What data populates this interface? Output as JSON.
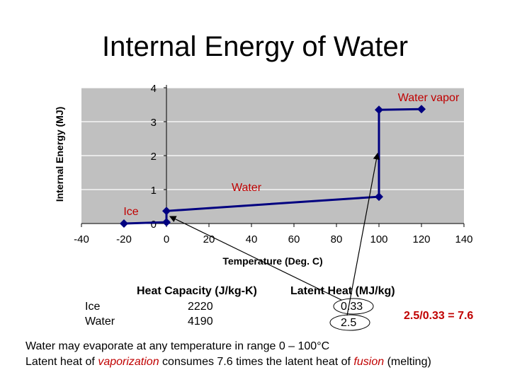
{
  "slide": {
    "title": "Internal Energy of Water"
  },
  "chart_data": {
    "type": "line",
    "title": "",
    "xlabel": "Temperature (Deg. C)",
    "ylabel": "Internal Energy (MJ)",
    "xlim": [
      -40,
      140
    ],
    "ylim": [
      0,
      4
    ],
    "xticks": [
      -40,
      -20,
      0,
      20,
      40,
      60,
      80,
      100,
      120,
      140
    ],
    "yticks": [
      0,
      1,
      2,
      3,
      4
    ],
    "grid": true,
    "legend": "none",
    "series": [
      {
        "color": "#000080",
        "points": [
          {
            "x": -20,
            "y": 0.0
          },
          {
            "x": 0,
            "y": 0.04
          },
          {
            "x": 0,
            "y": 0.37
          },
          {
            "x": 100,
            "y": 0.79
          },
          {
            "x": 100,
            "y": 3.35
          },
          {
            "x": 120,
            "y": 3.37
          }
        ]
      }
    ],
    "annotations": [
      {
        "text": "Ice",
        "color": "#c00000"
      },
      {
        "text": "Water",
        "color": "#c00000"
      },
      {
        "text": "Water vapor",
        "color": "#c00000"
      }
    ],
    "plot_bg": "#c0c0c0"
  },
  "table": {
    "headers": [
      "Heat Capacity (J/kg-K)",
      "Latent Heat (MJ/kg)"
    ],
    "rows": [
      {
        "label": "Ice",
        "heat_capacity": "2220",
        "latent_heat": "0.33"
      },
      {
        "label": "Water",
        "heat_capacity": "4190",
        "latent_heat": "2.5"
      }
    ],
    "ratio": "2.5/0.33 = 7.6"
  },
  "notes": {
    "line1": "Water may evaporate at any temperature in range 0 – 100°C",
    "line2_a": "Latent heat of ",
    "line2_b": "vaporization",
    "line2_c": " consumes 7.6 times the latent heat of ",
    "line2_d": "fusion",
    "line2_e": " (melting)"
  },
  "colors": {
    "accent": "#c00000",
    "series": "#000080",
    "plot_bg": "#c0c0c0",
    "grid": "#ffffff"
  }
}
